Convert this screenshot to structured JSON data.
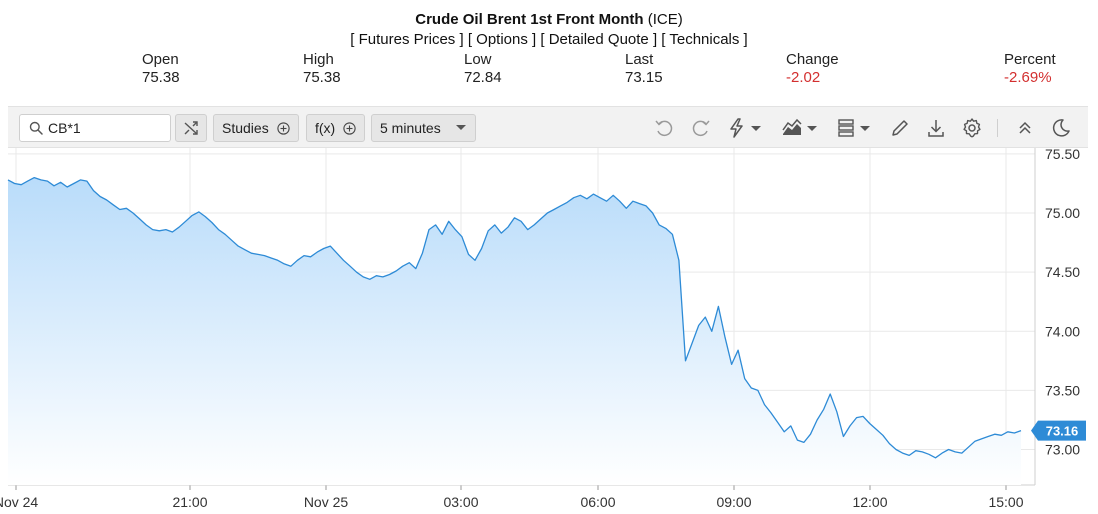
{
  "header": {
    "title": "Crude Oil Brent 1st Front Month",
    "exchange": "(ICE)",
    "links": [
      "[ Futures Prices ]",
      "[ Options ]",
      "[ Detailed Quote ]",
      "[ Technicals ]"
    ],
    "stats": [
      {
        "label": "Open",
        "value": "75.38",
        "negative": false
      },
      {
        "label": "High",
        "value": "75.38",
        "negative": false
      },
      {
        "label": "Low",
        "value": "72.84",
        "negative": false
      },
      {
        "label": "Last",
        "value": "73.15",
        "negative": false
      },
      {
        "label": "Change",
        "value": "-2.02",
        "negative": true
      },
      {
        "label": "Percent",
        "value": "-2.69%",
        "negative": true
      }
    ]
  },
  "toolbar": {
    "symbol_value": "CB*1",
    "studies_label": "Studies",
    "fx_label": "f(x)",
    "interval_label": "5 minutes",
    "icons": [
      "search-icon",
      "compare-icon",
      "add-icon",
      "chevron-down-icon",
      "undo-icon",
      "redo-icon",
      "lightning-icon",
      "chart-type-icon",
      "template-icon",
      "draw-icon",
      "download-icon",
      "settings-icon",
      "collapse-icon",
      "dark-mode-icon"
    ]
  },
  "colors": {
    "line": "#2e8bd6",
    "fill_top": "#b9dcfa",
    "fill_bottom": "#ffffff",
    "grid": "#e9e9e9",
    "last_badge": "#2e8bd6",
    "negative": "#d32f2f",
    "toolbar_bg": "#f2f2f2"
  },
  "chart_data": {
    "type": "area",
    "title": "",
    "xlabel": "",
    "ylabel": "",
    "ylim": [
      72.7,
      75.55
    ],
    "yticks": [
      "75.50",
      "75.00",
      "74.50",
      "74.00",
      "73.50",
      "73.00"
    ],
    "xticks": [
      "Nov 24",
      "21:00",
      "Nov 25",
      "03:00",
      "06:00",
      "09:00",
      "12:00",
      "15:00"
    ],
    "grid": true,
    "last_value": "73.16",
    "series": [
      {
        "values": [
          75.28,
          75.25,
          75.24,
          75.27,
          75.3,
          75.28,
          75.27,
          75.23,
          75.26,
          75.22,
          75.25,
          75.28,
          75.27,
          75.19,
          75.14,
          75.11,
          75.07,
          75.03,
          75.04,
          75.0,
          74.95,
          74.9,
          74.86,
          74.85,
          74.86,
          74.84,
          74.88,
          74.93,
          74.98,
          75.01,
          74.97,
          74.92,
          74.86,
          74.82,
          74.77,
          74.72,
          74.69,
          74.66,
          74.65,
          74.64,
          74.62,
          74.6,
          74.57,
          74.55,
          74.6,
          74.64,
          74.63,
          74.67,
          74.7,
          74.72,
          74.66,
          74.6,
          74.55,
          74.5,
          74.46,
          74.44,
          74.47,
          74.46,
          74.48,
          74.51,
          74.55,
          74.58,
          74.53,
          74.66,
          74.86,
          74.9,
          74.82,
          74.93,
          74.86,
          74.8,
          74.65,
          74.6,
          74.7,
          74.85,
          74.9,
          74.83,
          74.88,
          74.96,
          74.93,
          74.86,
          74.9,
          74.95,
          75.0,
          75.03,
          75.06,
          75.09,
          75.13,
          75.15,
          75.12,
          75.16,
          75.13,
          75.1,
          75.15,
          75.1,
          75.04,
          75.1,
          75.08,
          75.06,
          75.0,
          74.9,
          74.87,
          74.82,
          74.6,
          73.75,
          73.9,
          74.05,
          74.12,
          74.0,
          74.21,
          73.95,
          73.72,
          73.84,
          73.6,
          73.52,
          73.5,
          73.38,
          73.31,
          73.23,
          73.15,
          73.2,
          73.08,
          73.06,
          73.13,
          73.25,
          73.34,
          73.47,
          73.32,
          73.11,
          73.2,
          73.27,
          73.28,
          73.22,
          73.17,
          73.12,
          73.05,
          73.0,
          72.97,
          72.95,
          72.99,
          72.98,
          72.96,
          72.93,
          72.97,
          73.0,
          72.98,
          72.97,
          73.02,
          73.07,
          73.09,
          73.11,
          73.13,
          73.12,
          73.15,
          73.14,
          73.16
        ]
      }
    ]
  }
}
